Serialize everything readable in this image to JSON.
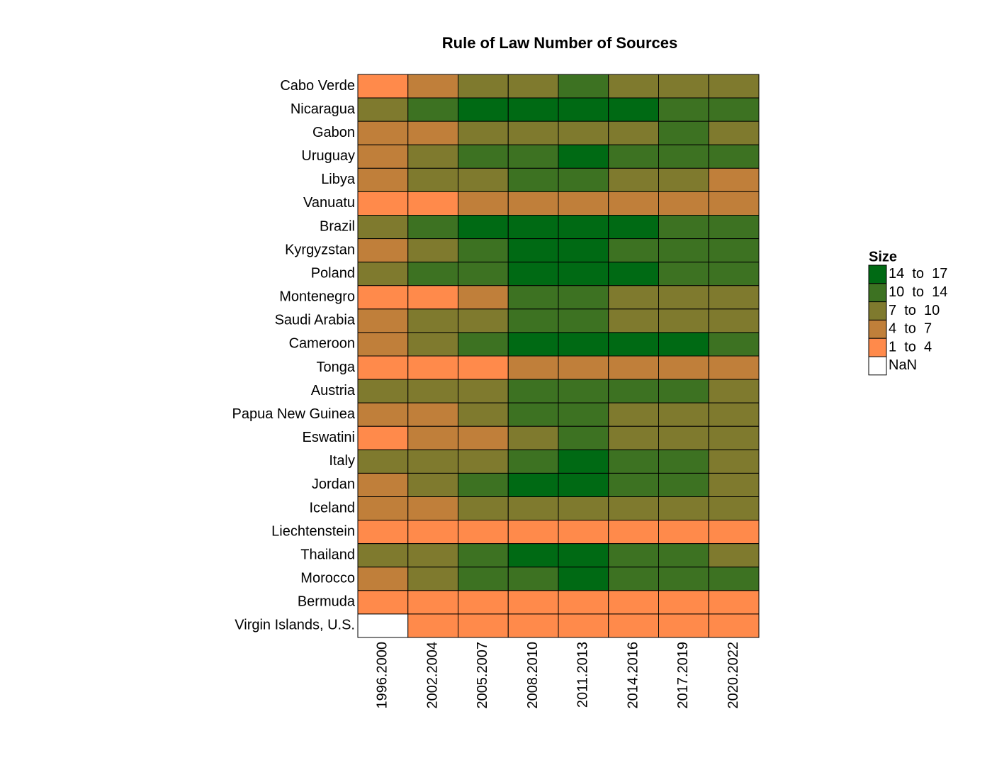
{
  "chart_data": {
    "type": "heatmap",
    "title": "Rule of Law Number of Sources",
    "categories": [
      "1996.2000",
      "2002.2004",
      "2005.2007",
      "2008.2010",
      "2011.2013",
      "2014.2016",
      "2017.2019",
      "2020.2022"
    ],
    "rows": [
      "Cabo Verde",
      "Nicaragua",
      "Gabon",
      "Uruguay",
      "Libya",
      "Vanuatu",
      "Brazil",
      "Kyrgyzstan",
      "Poland",
      "Montenegro",
      "Saudi Arabia",
      "Cameroon",
      "Tonga",
      "Austria",
      "Papua New Guinea",
      "Eswatini",
      "Italy",
      "Jordan",
      "Iceland",
      "Liechtenstein",
      "Thailand",
      "Morocco",
      "Bermuda",
      "Virgin Islands, U.S."
    ],
    "values": [
      [
        3,
        5,
        8,
        8,
        12,
        8,
        8,
        8
      ],
      [
        8,
        12,
        15,
        15,
        15,
        15,
        12,
        12
      ],
      [
        5,
        5,
        8,
        8,
        8,
        8,
        12,
        8
      ],
      [
        5,
        8,
        12,
        12,
        15,
        12,
        12,
        12
      ],
      [
        5,
        8,
        8,
        12,
        12,
        8,
        8,
        5
      ],
      [
        3,
        3,
        5,
        5,
        5,
        5,
        5,
        5
      ],
      [
        8,
        12,
        15,
        15,
        15,
        15,
        12,
        12
      ],
      [
        5,
        8,
        12,
        15,
        15,
        12,
        12,
        12
      ],
      [
        8,
        12,
        12,
        15,
        15,
        15,
        12,
        12
      ],
      [
        3,
        3,
        5,
        12,
        12,
        8,
        8,
        8
      ],
      [
        5,
        8,
        8,
        12,
        12,
        8,
        8,
        8
      ],
      [
        5,
        8,
        12,
        15,
        15,
        15,
        15,
        12
      ],
      [
        3,
        3,
        3,
        5,
        5,
        5,
        5,
        5
      ],
      [
        8,
        8,
        8,
        12,
        12,
        12,
        12,
        8
      ],
      [
        5,
        5,
        8,
        12,
        12,
        8,
        8,
        8
      ],
      [
        3,
        5,
        5,
        8,
        12,
        8,
        8,
        8
      ],
      [
        8,
        8,
        8,
        12,
        15,
        12,
        12,
        8
      ],
      [
        5,
        8,
        12,
        15,
        15,
        12,
        12,
        8
      ],
      [
        5,
        5,
        8,
        8,
        8,
        8,
        8,
        8
      ],
      [
        3,
        3,
        3,
        3,
        3,
        3,
        3,
        3
      ],
      [
        8,
        8,
        12,
        15,
        15,
        12,
        12,
        8
      ],
      [
        5,
        8,
        12,
        12,
        15,
        12,
        12,
        12
      ],
      [
        3,
        3,
        3,
        3,
        3,
        3,
        3,
        3
      ],
      [
        null,
        3,
        3,
        3,
        3,
        3,
        3,
        3
      ]
    ],
    "legend": {
      "title": "Size",
      "scale": [
        {
          "min": 14,
          "max": 17,
          "label": "14  to  17",
          "color": "#006a14"
        },
        {
          "min": 10,
          "max": 14,
          "label": "10  to  14",
          "color": "#3d7222"
        },
        {
          "min": 7,
          "max": 10,
          "label": "7  to  10",
          "color": "#7f7a2e"
        },
        {
          "min": 4,
          "max": 7,
          "label": "4  to  7",
          "color": "#c07f3a"
        },
        {
          "min": 1,
          "max": 4,
          "label": "1  to  4",
          "color": "#ff8a4b"
        }
      ],
      "nan": {
        "label": "NaN",
        "color": "#ffffff"
      }
    }
  }
}
